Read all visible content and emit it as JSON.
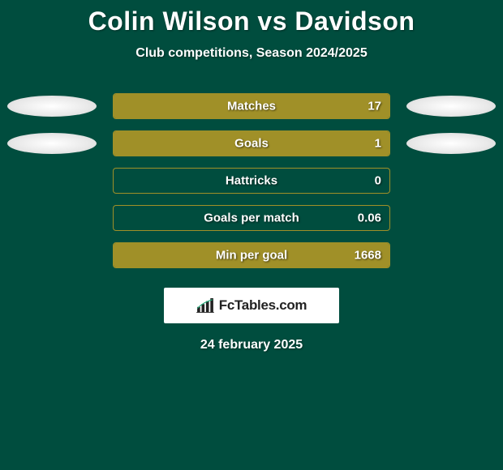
{
  "title": "Colin Wilson vs Davidson",
  "subtitle": "Club competitions, Season 2024/2025",
  "date": "24 february 2025",
  "badge_text": "FcTables.com",
  "colors": {
    "background": "#004d3e",
    "bar_fill": "#a09028",
    "bar_border": "#a09028",
    "text": "#ffffff",
    "badge_bg": "#ffffff",
    "badge_text": "#222222"
  },
  "rows": [
    {
      "label": "Matches",
      "value": "17",
      "fill_pct": 100,
      "left_ellipse": true,
      "right_ellipse": true
    },
    {
      "label": "Goals",
      "value": "1",
      "fill_pct": 100,
      "left_ellipse": true,
      "right_ellipse": true
    },
    {
      "label": "Hattricks",
      "value": "0",
      "fill_pct": 0,
      "left_ellipse": false,
      "right_ellipse": false
    },
    {
      "label": "Goals per match",
      "value": "0.06",
      "fill_pct": 0,
      "left_ellipse": false,
      "right_ellipse": false
    },
    {
      "label": "Min per goal",
      "value": "1668",
      "fill_pct": 100,
      "left_ellipse": false,
      "right_ellipse": false
    }
  ]
}
